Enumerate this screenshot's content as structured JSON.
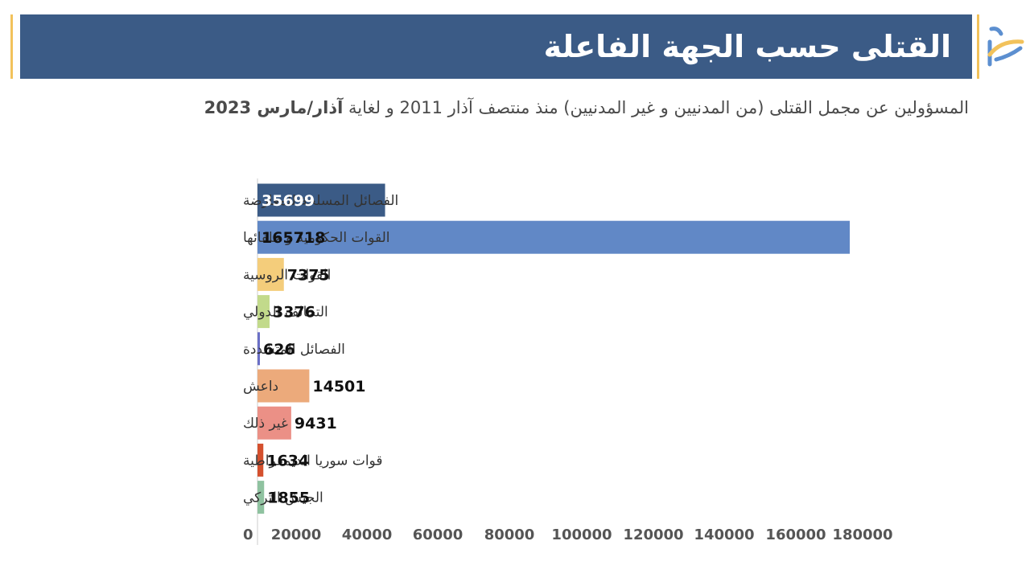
{
  "header": {
    "title": "القتلى حسب الجهة الفاعلة",
    "brand_color": "#3b5b86",
    "accent_color": "#f2c25b",
    "logo_icon": "stylized-sn-logo"
  },
  "subtitle": {
    "main": "المسؤولين عن مجمل القتلى (من المدنيين و غير المدنيين) منذ منتصف آذار 2011 و لغاية ",
    "bold": "آذار/مارس 2023"
  },
  "chart_data": {
    "type": "bar",
    "orientation": "horizontal",
    "categories": [
      "الفصائل المسلحة للمعارضة",
      "القوات الحكومية و حلفائها",
      "القوات الروسية",
      "التحالف الدولي",
      "الفصائل المتشددة",
      "داعش",
      "غير ذلك",
      "قوات سوريا الديمقراطية",
      "الجيش التركي"
    ],
    "values": [
      35699,
      165718,
      7375,
      3376,
      626,
      14501,
      9431,
      1634,
      1855
    ],
    "colors": [
      "#3b5b86",
      "#6188c6",
      "#f4cd7b",
      "#c2da8b",
      "#6a6fc6",
      "#ecaa7b",
      "#eb9086",
      "#d4502e",
      "#8fc2a0"
    ],
    "value_label_colors": [
      "#ffffff",
      "#111111",
      "#111111",
      "#111111",
      "#111111",
      "#111111",
      "#111111",
      "#111111",
      "#111111"
    ],
    "value_label_inside": [
      true,
      true,
      false,
      false,
      false,
      false,
      false,
      false,
      false
    ],
    "xticks": [
      0,
      20000,
      40000,
      60000,
      80000,
      100000,
      120000,
      140000,
      160000,
      180000
    ],
    "xlim": [
      0,
      180000
    ],
    "grid": false,
    "legend": "none"
  }
}
